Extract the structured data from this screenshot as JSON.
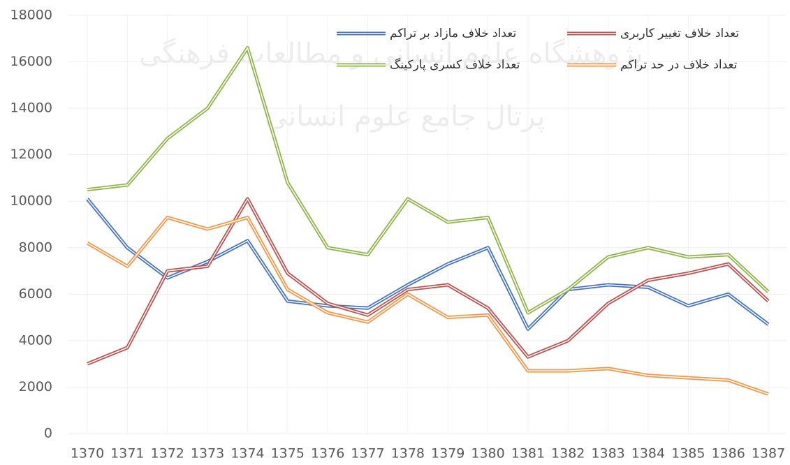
{
  "chart_data": {
    "type": "line",
    "categories": [
      "1370",
      "1371",
      "1372",
      "1373",
      "1374",
      "1375",
      "1376",
      "1377",
      "1378",
      "1379",
      "1380",
      "1381",
      "1382",
      "1383",
      "1384",
      "1385",
      "1386",
      "1387"
    ],
    "series": [
      {
        "name": "تعداد خلاف مازاد بر تراکم",
        "color": "#4472c4",
        "values": [
          10100,
          8000,
          6700,
          7400,
          8300,
          5700,
          5500,
          5400,
          6400,
          7300,
          8000,
          4500,
          6200,
          6400,
          6300,
          5500,
          6000,
          4700
        ]
      },
      {
        "name": "تعداد خلاف تغییر کاربری",
        "color": "#c0504d",
        "values": [
          3000,
          3700,
          7000,
          7200,
          10100,
          6900,
          5600,
          5100,
          6200,
          6400,
          5400,
          3300,
          4000,
          5600,
          6600,
          6900,
          7300,
          5700
        ]
      },
      {
        "name": "تعداد خلاف کسری پارکینگ",
        "color": "#8fb447",
        "values": [
          10500,
          10700,
          12700,
          14000,
          16600,
          10800,
          8000,
          7700,
          10100,
          9100,
          9300,
          5200,
          6200,
          7600,
          8000,
          7600,
          7700,
          6100
        ]
      },
      {
        "name": "تعداد  خلاف در حد تراکم",
        "color": "#f79646",
        "values": [
          8200,
          7200,
          9300,
          8800,
          9300,
          6200,
          5200,
          4800,
          6000,
          5000,
          5100,
          2700,
          2700,
          2800,
          2500,
          2400,
          2300,
          1700
        ]
      }
    ],
    "ylim": [
      0,
      18000
    ],
    "yticks": [
      0,
      2000,
      4000,
      6000,
      8000,
      10000,
      12000,
      14000,
      16000,
      18000
    ],
    "grid": true,
    "watermark": [
      "پژوهشگاه علوم انسانی و مطالعات فرهنگی",
      "پرتال جامع علوم انسانی"
    ]
  }
}
